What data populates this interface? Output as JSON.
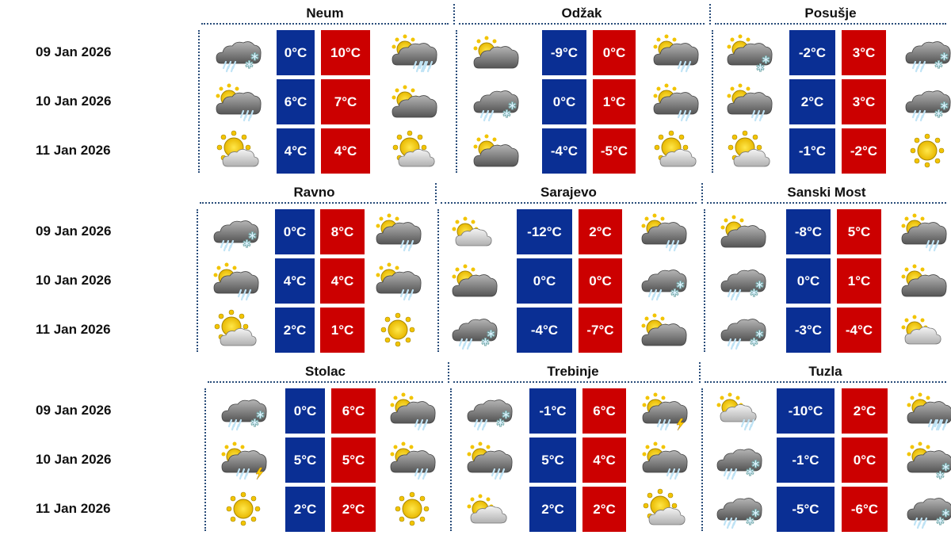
{
  "dates": [
    "09 Jan 2026",
    "10 Jan 2026",
    "11 Jan 2026"
  ],
  "colors": {
    "min": "#0a2f94",
    "max": "#cc0000",
    "separator": "#2a4d7a"
  },
  "bands": [
    {
      "cities": [
        {
          "name": "Neum",
          "days": [
            {
              "icon1": "sleet",
              "min": "0°C",
              "max": "10°C",
              "icon2": "sun-cloud-heavy-rain"
            },
            {
              "icon1": "sun-cloud-rain",
              "min": "6°C",
              "max": "7°C",
              "icon2": "sun-cloud"
            },
            {
              "icon1": "sunny-cloud",
              "min": "4°C",
              "max": "4°C",
              "icon2": "sunny-cloud"
            }
          ]
        },
        {
          "name": "Odžak",
          "days": [
            {
              "icon1": "sun-cloud",
              "min": "-9°C",
              "max": "0°C",
              "icon2": "sun-cloud-rain"
            },
            {
              "icon1": "sleet",
              "min": "0°C",
              "max": "1°C",
              "icon2": "sun-cloud-rain"
            },
            {
              "icon1": "sun-cloud",
              "min": "-4°C",
              "max": "-5°C",
              "icon2": "sunny-cloud"
            }
          ]
        },
        {
          "name": "Posušje",
          "days": [
            {
              "icon1": "sun-cloud-snow",
              "min": "-2°C",
              "max": "3°C",
              "icon2": "sleet"
            },
            {
              "icon1": "sun-cloud-rain",
              "min": "2°C",
              "max": "3°C",
              "icon2": "sleet"
            },
            {
              "icon1": "sunny-cloud",
              "min": "-1°C",
              "max": "-2°C",
              "icon2": "sun"
            }
          ]
        }
      ]
    },
    {
      "cities": [
        {
          "name": "Ravno",
          "days": [
            {
              "icon1": "sleet",
              "min": "0°C",
              "max": "8°C",
              "icon2": "sun-cloud-rain"
            },
            {
              "icon1": "sun-cloud-rain",
              "min": "4°C",
              "max": "4°C",
              "icon2": "sun-cloud-rain"
            },
            {
              "icon1": "sunny-cloud",
              "min": "2°C",
              "max": "1°C",
              "icon2": "sun"
            }
          ]
        },
        {
          "name": "Sarajevo",
          "days": [
            {
              "icon1": "sun-light-cloud",
              "min": "-12°C",
              "max": "2°C",
              "icon2": "sun-cloud-rain"
            },
            {
              "icon1": "sun-cloud",
              "min": "0°C",
              "max": "0°C",
              "icon2": "sleet"
            },
            {
              "icon1": "sleet",
              "min": "-4°C",
              "max": "-7°C",
              "icon2": "sun-cloud"
            }
          ]
        },
        {
          "name": "Sanski Most",
          "days": [
            {
              "icon1": "sun-cloud",
              "min": "-8°C",
              "max": "5°C",
              "icon2": "sun-cloud-rain"
            },
            {
              "icon1": "sleet",
              "min": "0°C",
              "max": "1°C",
              "icon2": "sun-cloud"
            },
            {
              "icon1": "sleet",
              "min": "-3°C",
              "max": "-4°C",
              "icon2": "sun-light-cloud"
            }
          ]
        }
      ]
    },
    {
      "cities": [
        {
          "name": "Stolac",
          "days": [
            {
              "icon1": "sleet",
              "min": "0°C",
              "max": "6°C",
              "icon2": "sun-cloud-rain"
            },
            {
              "icon1": "sun-cloud-thunder",
              "min": "5°C",
              "max": "5°C",
              "icon2": "sun-cloud-rain"
            },
            {
              "icon1": "sun",
              "min": "2°C",
              "max": "2°C",
              "icon2": "sun"
            }
          ]
        },
        {
          "name": "Trebinje",
          "days": [
            {
              "icon1": "sleet",
              "min": "-1°C",
              "max": "6°C",
              "icon2": "sun-cloud-thunder"
            },
            {
              "icon1": "sun-cloud-rain",
              "min": "5°C",
              "max": "4°C",
              "icon2": "sun-cloud-rain"
            },
            {
              "icon1": "sun-light-cloud",
              "min": "2°C",
              "max": "2°C",
              "icon2": "sunny-cloud"
            }
          ]
        },
        {
          "name": "Tuzla",
          "days": [
            {
              "icon1": "sun-light-rain",
              "min": "-10°C",
              "max": "2°C",
              "icon2": "sun-cloud-heavy-rain"
            },
            {
              "icon1": "sleet",
              "min": "-1°C",
              "max": "0°C",
              "icon2": "sun-cloud-snow"
            },
            {
              "icon1": "sleet",
              "min": "-5°C",
              "max": "-6°C",
              "icon2": "sleet"
            }
          ]
        }
      ]
    }
  ]
}
